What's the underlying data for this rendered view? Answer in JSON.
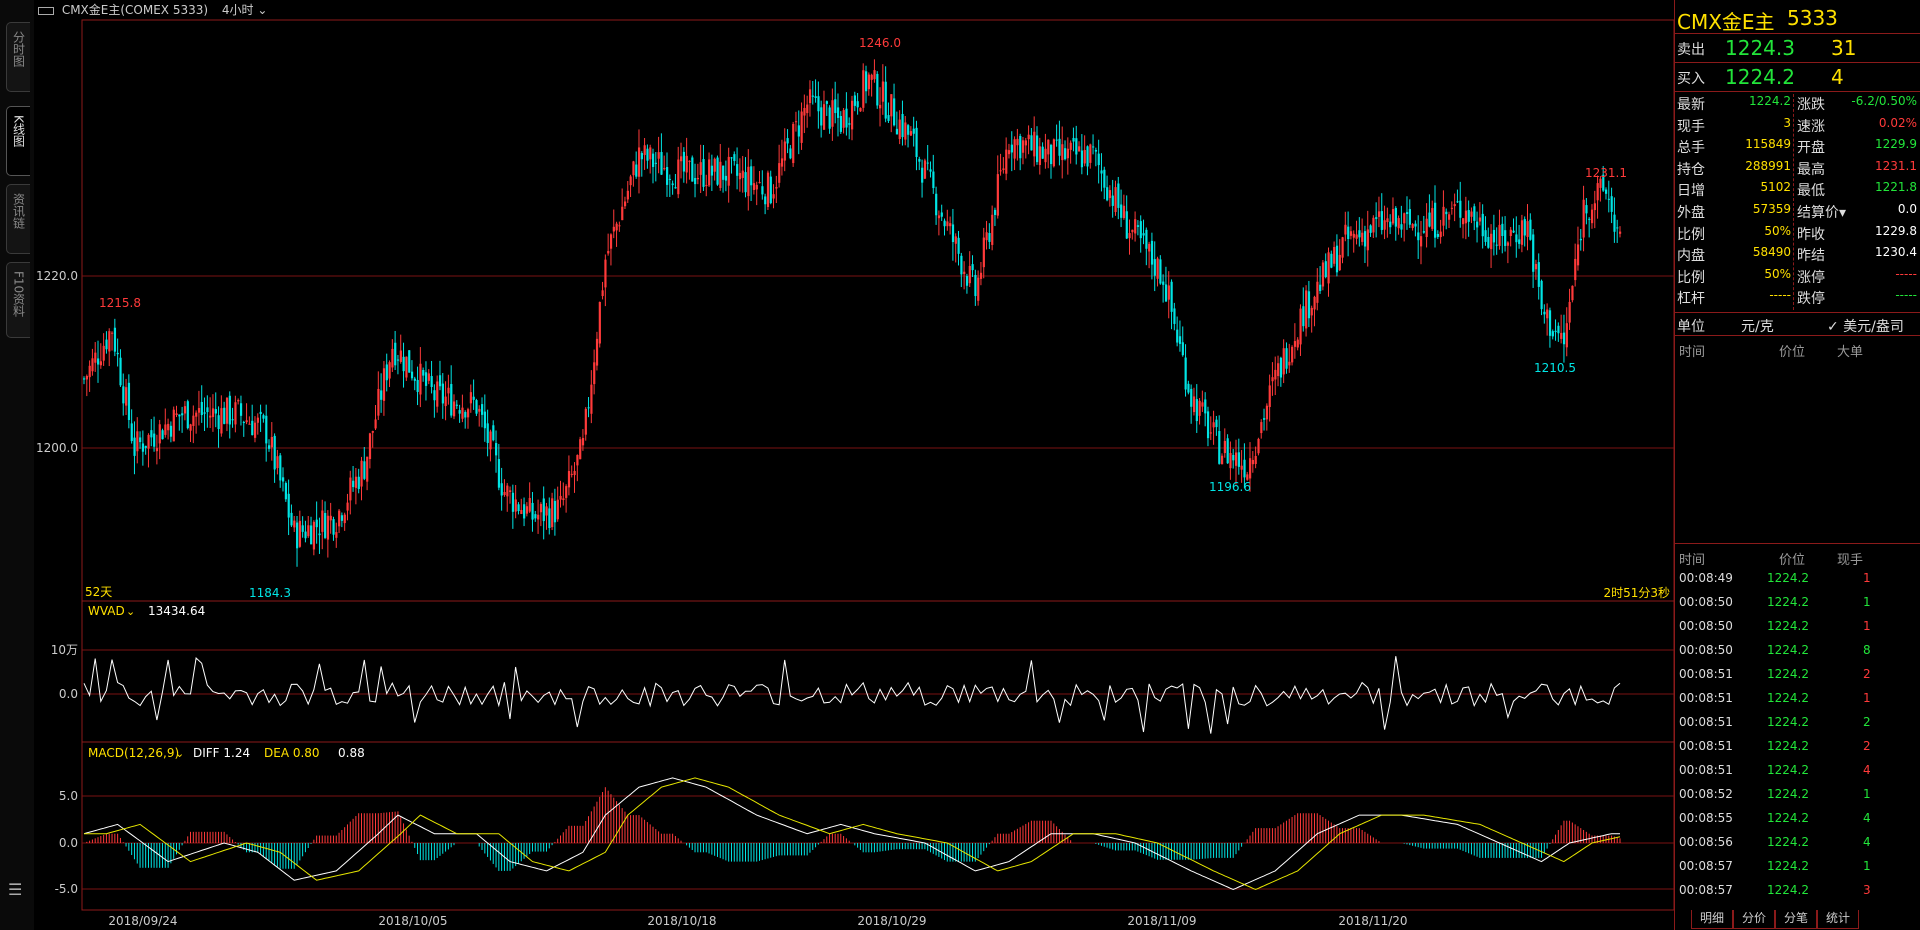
{
  "topbar": {
    "title": "CMX金E主(COMEX 5333)",
    "period": "4小时"
  },
  "lefttabs": [
    {
      "label": "分时图"
    },
    {
      "label": "K线图"
    },
    {
      "label": "资讯链"
    },
    {
      "label": "F10资料"
    }
  ],
  "chart": {
    "price_axis": [
      "1220.0",
      "1200.0"
    ],
    "annotations": {
      "high": "1246.0",
      "low1": "1184.3",
      "low2": "1196.6",
      "low3": "1210.5",
      "hi2": "1231.1",
      "hi3": "1215.8"
    },
    "days_label": "52天",
    "countdown": "2时51分3秒",
    "dates": [
      "2018/09/24",
      "2018/10/05",
      "2018/10/18",
      "2018/10/29",
      "2018/11/09",
      "2018/11/20"
    ],
    "wvad": {
      "label": "WVAD",
      "value": "13434.64",
      "axis": [
        "10万",
        "0.0"
      ]
    },
    "macd": {
      "label": "MACD(12,26,9)",
      "diff_label": "DIFF 1.24",
      "dea_label": "DEA 0.80",
      "macd_value": "0.88",
      "axis": [
        "5.0",
        "0.0",
        "-5.0"
      ]
    }
  },
  "quote": {
    "name": "CMX金E主",
    "code": "5333",
    "sell_label": "卖出",
    "sell_price": "1224.3",
    "sell_qty": "31",
    "buy_label": "买入",
    "buy_price": "1224.2",
    "buy_qty": "4",
    "rows": [
      {
        "l1": "最新",
        "v1": "1224.2",
        "c1": "grn",
        "l2": "涨跌",
        "v2": "-6.2/0.50%",
        "c2": "grn"
      },
      {
        "l1": "现手",
        "v1": "3",
        "c1": "yel",
        "l2": "速涨",
        "v2": "0.02%",
        "c2": "red"
      },
      {
        "l1": "总手",
        "v1": "115849",
        "c1": "yel",
        "l2": "开盘",
        "v2": "1229.9",
        "c2": "grn"
      },
      {
        "l1": "持仓",
        "v1": "288991",
        "c1": "yel",
        "l2": "最高",
        "v2": "1231.1",
        "c2": "red"
      },
      {
        "l1": "日增",
        "v1": "5102",
        "c1": "yel",
        "l2": "最低",
        "v2": "1221.8",
        "c2": "grn"
      },
      {
        "l1": "外盘",
        "v1": "57359",
        "c1": "yel",
        "l2": "结算价▾",
        "v2": "0.0",
        "c2": "wht"
      },
      {
        "l1": "比例",
        "v1": "50%",
        "c1": "yel",
        "l2": "昨收",
        "v2": "1229.8",
        "c2": "wht"
      },
      {
        "l1": "内盘",
        "v1": "58490",
        "c1": "yel",
        "l2": "昨结",
        "v2": "1230.4",
        "c2": "wht"
      },
      {
        "l1": "比例",
        "v1": "50%",
        "c1": "yel",
        "l2": "涨停",
        "v2": "-----",
        "c2": "red"
      },
      {
        "l1": "杠杆",
        "v1": "-----",
        "c1": "yel",
        "l2": "跌停",
        "v2": "-----",
        "c2": "grn"
      }
    ],
    "unit_label": "单位",
    "unit_cny": "元/克",
    "unit_usd": "✓ 美元/盎司",
    "bigorder_headers": [
      "时间",
      "价位",
      "大单"
    ],
    "ticks_headers": [
      "时间",
      "价位",
      "现手"
    ],
    "ticks": [
      {
        "t": "00:08:49",
        "p": "1224.2",
        "v": "1",
        "c": "red"
      },
      {
        "t": "00:08:50",
        "p": "1224.2",
        "v": "1",
        "c": "grn"
      },
      {
        "t": "00:08:50",
        "p": "1224.2",
        "v": "1",
        "c": "red"
      },
      {
        "t": "00:08:50",
        "p": "1224.2",
        "v": "8",
        "c": "grn"
      },
      {
        "t": "00:08:51",
        "p": "1224.2",
        "v": "2",
        "c": "red"
      },
      {
        "t": "00:08:51",
        "p": "1224.2",
        "v": "1",
        "c": "red"
      },
      {
        "t": "00:08:51",
        "p": "1224.2",
        "v": "2",
        "c": "grn"
      },
      {
        "t": "00:08:51",
        "p": "1224.2",
        "v": "2",
        "c": "red"
      },
      {
        "t": "00:08:51",
        "p": "1224.2",
        "v": "4",
        "c": "red"
      },
      {
        "t": "00:08:52",
        "p": "1224.2",
        "v": "1",
        "c": "grn"
      },
      {
        "t": "00:08:55",
        "p": "1224.2",
        "v": "4",
        "c": "grn"
      },
      {
        "t": "00:08:56",
        "p": "1224.2",
        "v": "4",
        "c": "grn"
      },
      {
        "t": "00:08:57",
        "p": "1224.2",
        "v": "1",
        "c": "grn"
      },
      {
        "t": "00:08:57",
        "p": "1224.2",
        "v": "3",
        "c": "red"
      }
    ],
    "bottom_tabs": [
      "明细",
      "分价",
      "分笔",
      "统计"
    ]
  },
  "colors": {
    "up": "#ff3a3a",
    "down": "#00e5e5",
    "grid": "#8b1a1a",
    "ma_white": "#ffffff",
    "ma_yellow": "#e6e600"
  }
}
